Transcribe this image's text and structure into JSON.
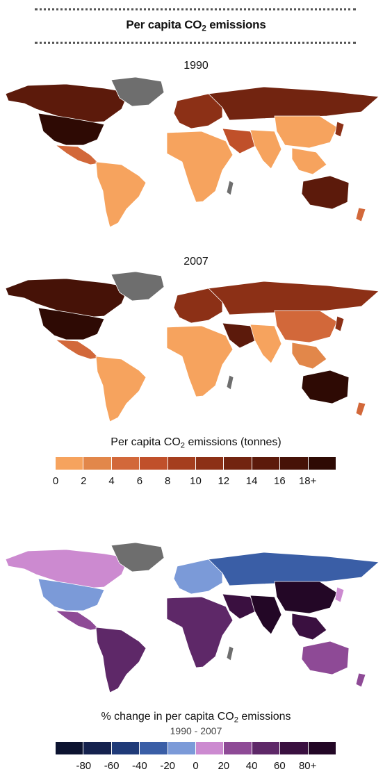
{
  "header": {
    "title_prefix": "Per capita CO",
    "title_sub": "2",
    "title_suffix": " emissions"
  },
  "maps": [
    {
      "year": "1990"
    },
    {
      "year": "2007"
    }
  ],
  "legend_emissions": {
    "title_prefix": "Per capita CO",
    "title_sub": "2",
    "title_suffix": " emissions (tonnes)",
    "colors": [
      "#f6a35e",
      "#e2874a",
      "#d2683a",
      "#c0502a",
      "#a53e1e",
      "#8c3016",
      "#722410",
      "#5c1a0b",
      "#461207",
      "#2e0a04"
    ],
    "ticks": [
      "0",
      "2",
      "4",
      "6",
      "8",
      "10",
      "12",
      "14",
      "16",
      "18+"
    ]
  },
  "legend_change": {
    "title_prefix": "% change in per capita CO",
    "title_sub": "2",
    "title_suffix": " emissions",
    "subtitle": "1990 - 2007",
    "colors": [
      "#0c1330",
      "#15224e",
      "#1f3a78",
      "#3a5ea6",
      "#7b9ad8",
      "#cc8ad0",
      "#8e4a96",
      "#5e2868",
      "#3a1040",
      "#230726"
    ],
    "ticks": [
      "-80",
      "-60",
      "-40",
      "-20",
      "0",
      "20",
      "40",
      "60",
      "80+"
    ]
  },
  "palette": {
    "no_data": "#6e6e6e",
    "border": "#ffffff"
  }
}
